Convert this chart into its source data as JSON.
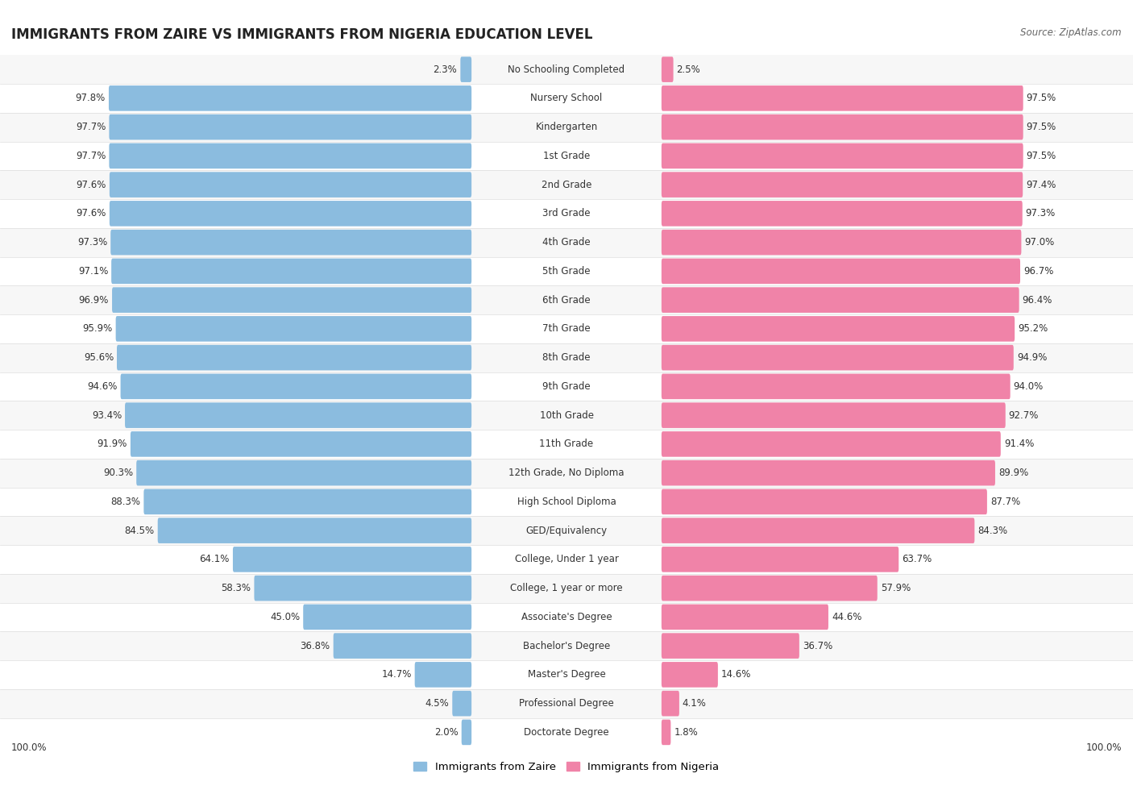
{
  "title": "IMMIGRANTS FROM ZAIRE VS IMMIGRANTS FROM NIGERIA EDUCATION LEVEL",
  "source": "Source: ZipAtlas.com",
  "legend_zaire": "Immigrants from Zaire",
  "legend_nigeria": "Immigrants from Nigeria",
  "categories": [
    "No Schooling Completed",
    "Nursery School",
    "Kindergarten",
    "1st Grade",
    "2nd Grade",
    "3rd Grade",
    "4th Grade",
    "5th Grade",
    "6th Grade",
    "7th Grade",
    "8th Grade",
    "9th Grade",
    "10th Grade",
    "11th Grade",
    "12th Grade, No Diploma",
    "High School Diploma",
    "GED/Equivalency",
    "College, Under 1 year",
    "College, 1 year or more",
    "Associate's Degree",
    "Bachelor's Degree",
    "Master's Degree",
    "Professional Degree",
    "Doctorate Degree"
  ],
  "zaire_values": [
    2.3,
    97.8,
    97.7,
    97.7,
    97.6,
    97.6,
    97.3,
    97.1,
    96.9,
    95.9,
    95.6,
    94.6,
    93.4,
    91.9,
    90.3,
    88.3,
    84.5,
    64.1,
    58.3,
    45.0,
    36.8,
    14.7,
    4.5,
    2.0
  ],
  "nigeria_values": [
    2.5,
    97.5,
    97.5,
    97.5,
    97.4,
    97.3,
    97.0,
    96.7,
    96.4,
    95.2,
    94.9,
    94.0,
    92.7,
    91.4,
    89.9,
    87.7,
    84.3,
    63.7,
    57.9,
    44.6,
    36.7,
    14.6,
    4.1,
    1.8
  ],
  "zaire_color": "#8bbcdf",
  "nigeria_color": "#f083a8",
  "row_bg_light": "#f7f7f7",
  "row_bg_white": "#ffffff",
  "label_fontsize": 8.5,
  "value_fontsize": 8.5,
  "title_fontsize": 12,
  "source_fontsize": 8.5,
  "legend_fontsize": 9.5
}
